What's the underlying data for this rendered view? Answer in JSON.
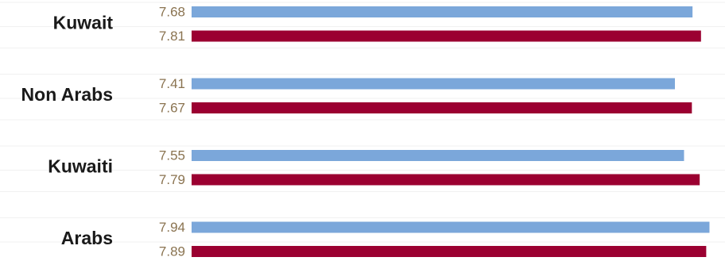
{
  "chart_data": {
    "type": "bar",
    "orientation": "horizontal",
    "categories": [
      "Kuwait",
      "Non Arabs",
      "Kuwaiti",
      "Arabs"
    ],
    "series": [
      {
        "values": [
          7.68,
          7.41,
          7.55,
          7.94
        ]
      },
      {
        "values": [
          7.81,
          7.67,
          7.79,
          7.89
        ]
      }
    ],
    "colors": [
      "#7ba7da",
      "#9b0031"
    ],
    "title": "",
    "xlabel": "",
    "ylabel": "",
    "grid": true
  }
}
